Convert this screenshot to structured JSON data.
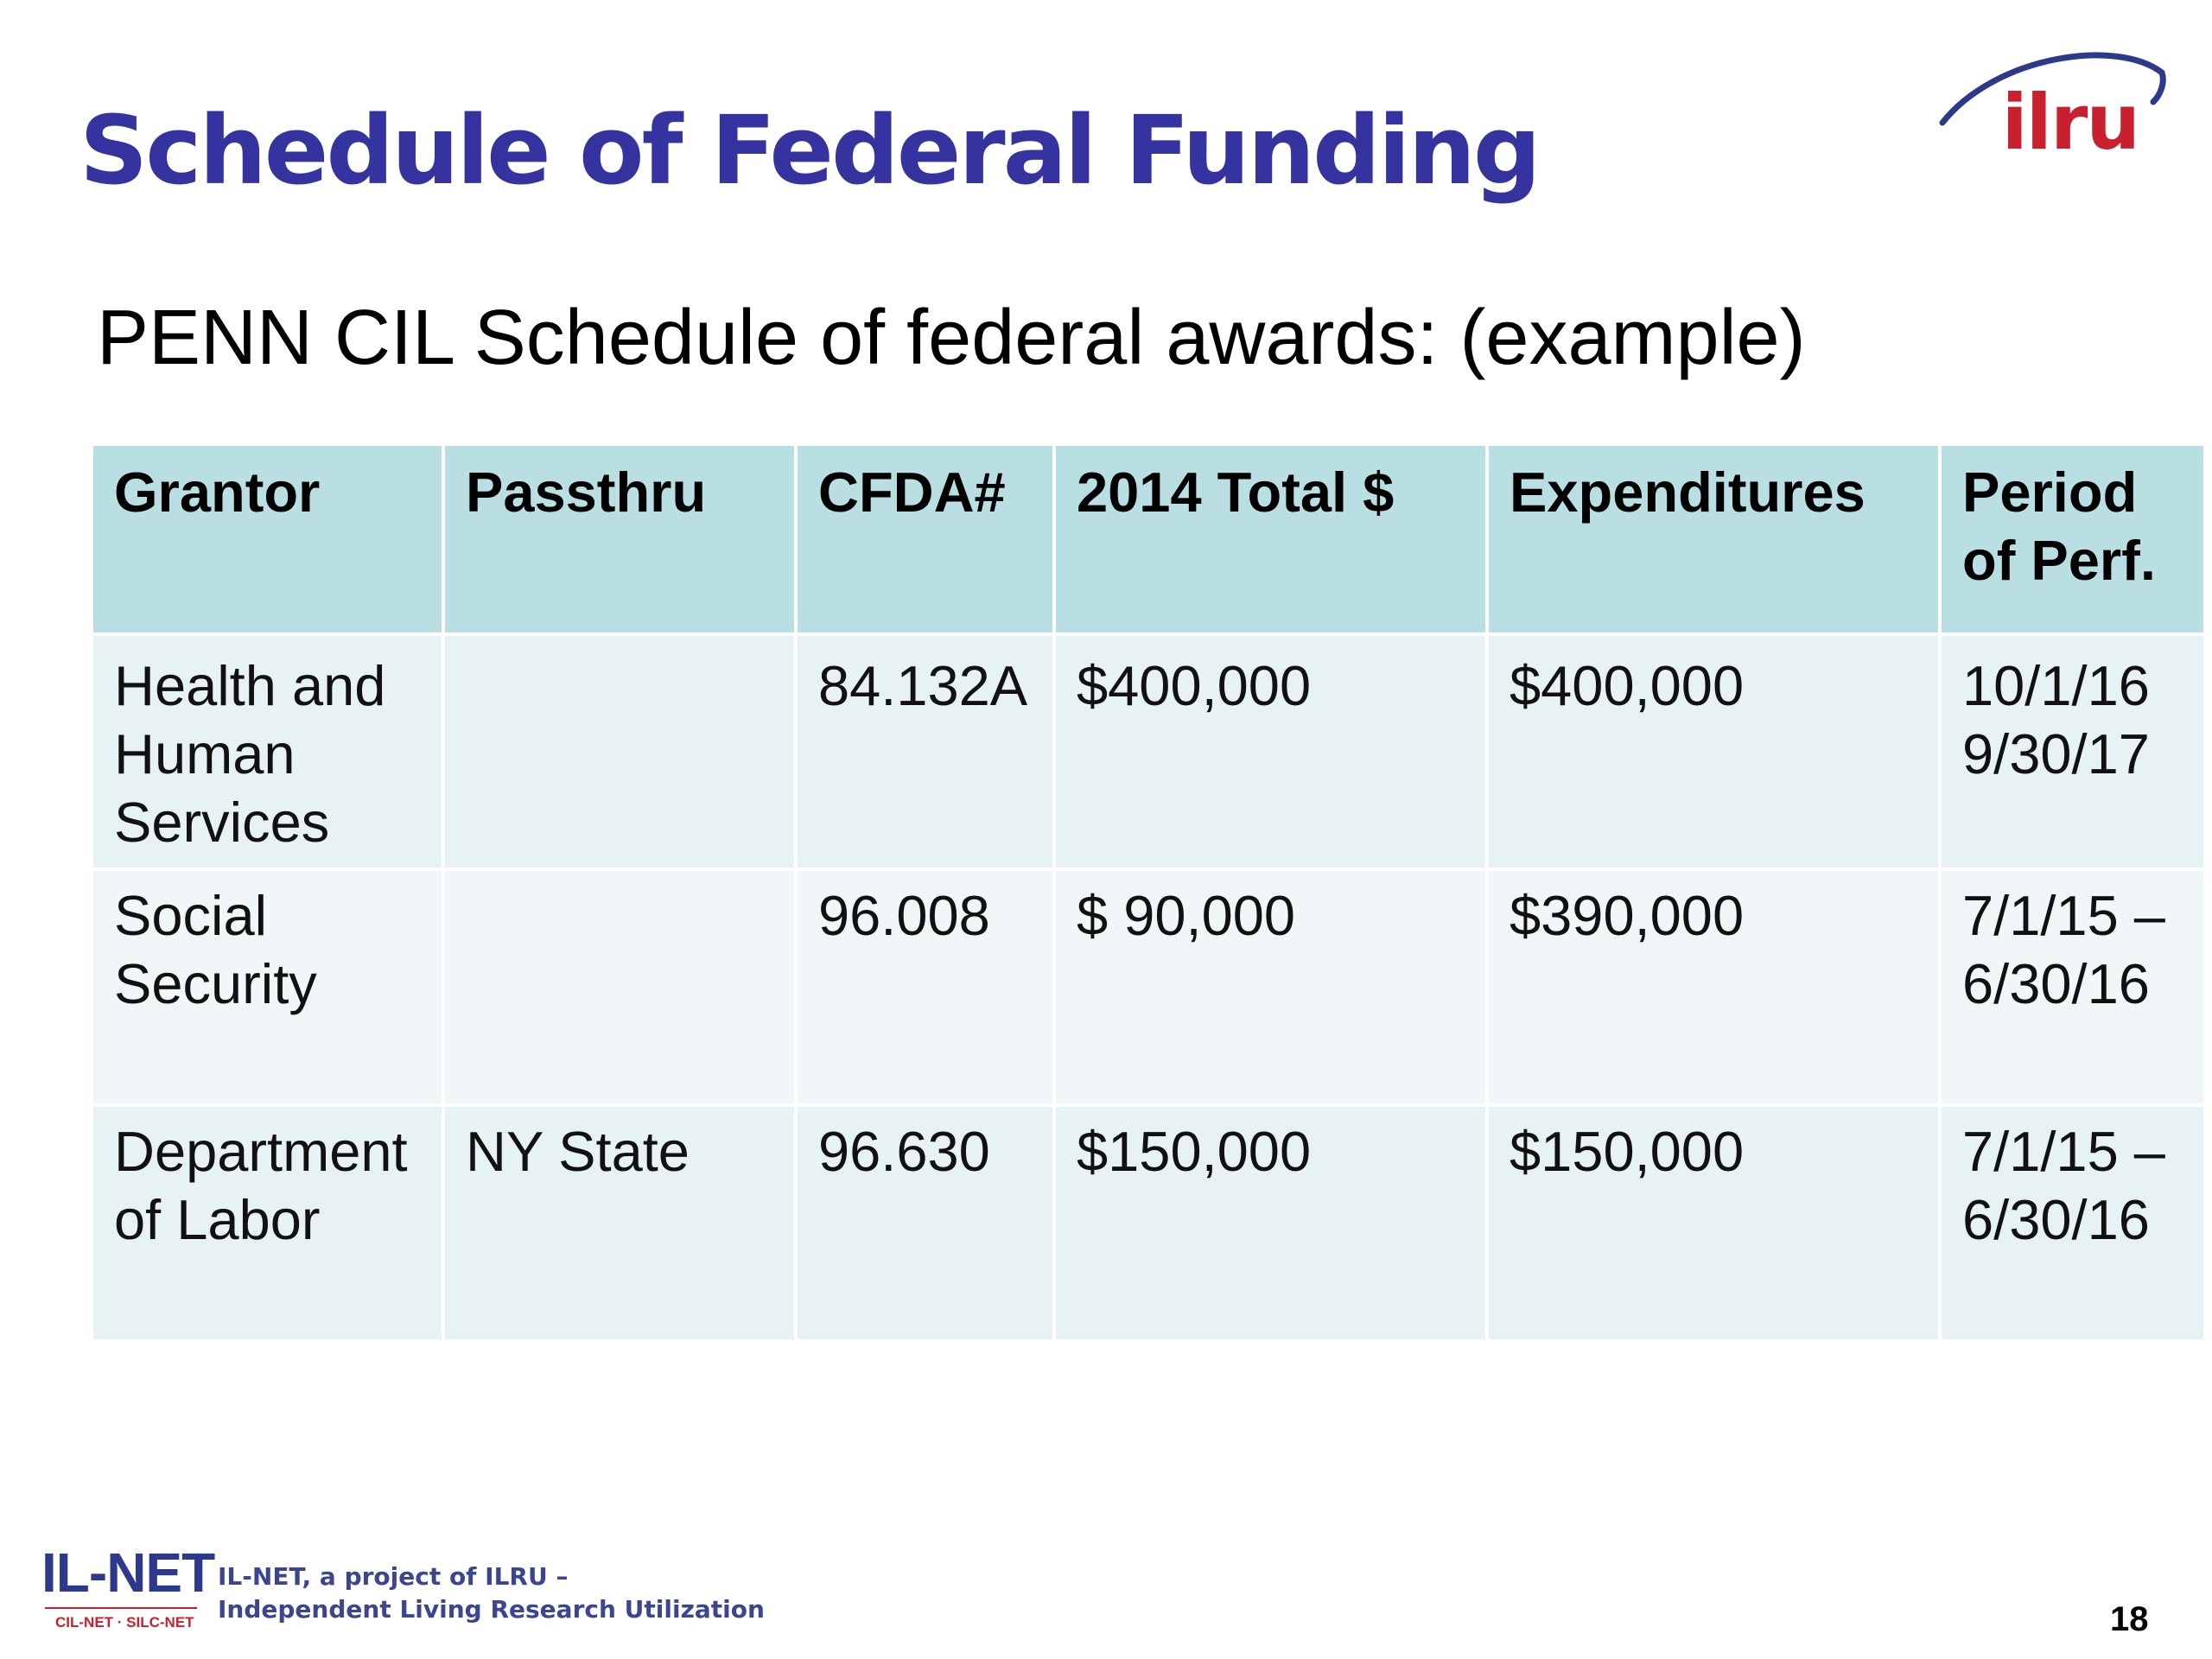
{
  "slide": {
    "title": "Schedule of Federal Funding",
    "subtitle": "PENN CIL Schedule of federal awards: (example)",
    "page_number": "18"
  },
  "logo": {
    "text": "ilru",
    "text_color": "#c8202f",
    "arc_color": "#2d3a8c"
  },
  "table": {
    "headers": [
      "Grantor",
      "Passthru",
      "CFDA#",
      "2014 Total $",
      "Expenditures",
      "Period\nof Perf."
    ],
    "rows": [
      [
        "Health and\nHuman\nServices",
        "",
        "84.132A",
        "$400,000",
        "$400,000",
        "10/1/16\n9/30/17"
      ],
      [
        "Social\nSecurity",
        "",
        "96.008",
        "$  90,000",
        "$390,000",
        "7/1/15 –\n6/30/16"
      ],
      [
        "Department\nof Labor",
        "NY State",
        "96.630",
        "$150,000",
        "$150,000",
        "7/1/15 –\n6/30/16"
      ]
    ],
    "header_bg": "#b9dfe3",
    "row_bg": [
      "#e6f2f3",
      "#f1f7f8",
      "#e6f2f3"
    ]
  },
  "footer": {
    "logo_text": "IL-NET",
    "logo_subtext": "CIL-NET · SILC-NET",
    "line1": "IL-NET, a project of ILRU –",
    "line2": "Independent Living Research Utilization"
  },
  "colors": {
    "title": "#3433a0",
    "footer_text": "#3b4590",
    "accent_red": "#c8202f"
  }
}
